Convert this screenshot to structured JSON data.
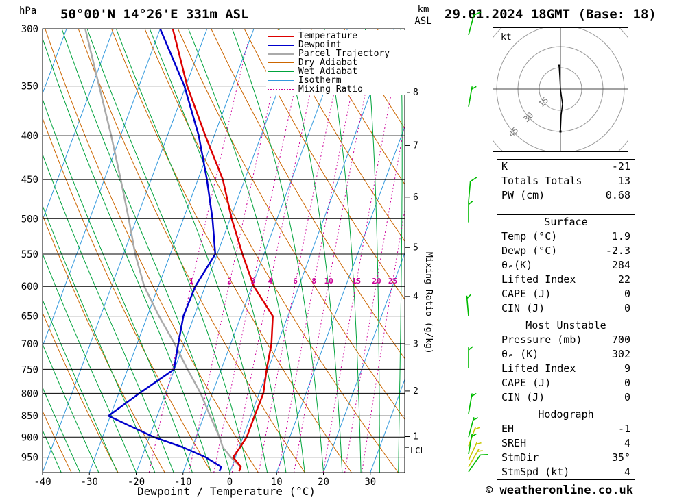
{
  "header": {
    "pressure_unit": "hPa",
    "station": "50°00'N 14°26'E 331m ASL",
    "altitude_unit": "km\nASL",
    "datetime": "29.01.2024 18GMT (Base: 18)"
  },
  "axes": {
    "pressure_ticks": [
      300,
      350,
      400,
      450,
      500,
      550,
      600,
      650,
      700,
      750,
      800,
      850,
      900,
      950
    ],
    "temp_ticks": [
      -40,
      -30,
      -20,
      -10,
      0,
      10,
      20,
      30
    ],
    "km_ticks": [
      1,
      2,
      3,
      4,
      5,
      6,
      7,
      8
    ],
    "xlabel": "Dewpoint / Temperature (°C)",
    "mixing_label": "Mixing Ratio (g/kg)",
    "lcl_label": "LCL"
  },
  "legend": [
    {
      "label": "Temperature",
      "color": "#dd0000",
      "width": 2.5,
      "dash": ""
    },
    {
      "label": "Dewpoint",
      "color": "#0000cc",
      "width": 2.5,
      "dash": ""
    },
    {
      "label": "Parcel Trajectory",
      "color": "#aaaaaa",
      "width": 2.5,
      "dash": ""
    },
    {
      "label": "Dry Adiabat",
      "color": "#cc6600",
      "width": 1,
      "dash": ""
    },
    {
      "label": "Wet Adiabat",
      "color": "#00a33c",
      "width": 1,
      "dash": ""
    },
    {
      "label": "Isotherm",
      "color": "#3399dd",
      "width": 1,
      "dash": ""
    },
    {
      "label": "Mixing Ratio",
      "color": "#cc0099",
      "width": 1,
      "dash": "2,3"
    }
  ],
  "chart_data": {
    "type": "skewt-sounding",
    "pressure_range_hPa": [
      300,
      990
    ],
    "temp_axis_range_C": [
      -40,
      40
    ],
    "pressure_hPa": [
      975,
      950,
      925,
      900,
      850,
      800,
      750,
      700,
      650,
      600,
      550,
      500,
      450,
      400,
      350,
      300
    ],
    "temperature_C": [
      1.9,
      -0.5,
      0.2,
      0.8,
      0.8,
      0.9,
      -0.3,
      -1.3,
      -3.2,
      -9.6,
      -14.6,
      -19.7,
      -24.7,
      -31.9,
      -39.7,
      -47.3
    ],
    "dewpoint_C": [
      -2.3,
      -6.4,
      -12.0,
      -19.0,
      -30.4,
      -25.6,
      -20.1,
      -21.2,
      -22.3,
      -22.1,
      -20.4,
      -23.8,
      -28.1,
      -33.3,
      -40.3,
      -50.0
    ],
    "parcel_C": [
      1.9,
      -1.0,
      -3.5,
      -5.0,
      -8.7,
      -12.5,
      -17.2,
      -22.0,
      -27.5,
      -33.0,
      -37.5,
      -41.7,
      -46.5,
      -52.0,
      -58.5,
      -66.0
    ],
    "mixing_ratio_lines_gkg": [
      1,
      2,
      3,
      4,
      6,
      8,
      10,
      15,
      20,
      25
    ],
    "lcl_pressure_hPa": 925
  },
  "wind_barbs": [
    {
      "p": 305,
      "color": "green",
      "spd": 10,
      "dir": 15
    },
    {
      "p": 370,
      "color": "green",
      "spd": 5,
      "dir": 10
    },
    {
      "p": 478,
      "color": "green",
      "spd": 10,
      "dir": 5
    },
    {
      "p": 505,
      "color": "green",
      "spd": 5,
      "dir": 0
    },
    {
      "p": 650,
      "color": "green",
      "spd": 5,
      "dir": -5
    },
    {
      "p": 747,
      "color": "green",
      "spd": 5,
      "dir": 0
    },
    {
      "p": 845,
      "color": "green",
      "spd": 5,
      "dir": 10
    },
    {
      "p": 900,
      "color": "green",
      "spd": 5,
      "dir": 15
    },
    {
      "p": 922,
      "color": "yellow",
      "spd": 5,
      "dir": 20
    },
    {
      "p": 942,
      "color": "green",
      "spd": 5,
      "dir": 10
    },
    {
      "p": 958,
      "color": "yellow",
      "spd": 5,
      "dir": 25
    },
    {
      "p": 975,
      "color": "yellow",
      "spd": 5,
      "dir": 30
    },
    {
      "p": 988,
      "color": "green",
      "spd": 10,
      "dir": 35
    }
  ],
  "hodograph": {
    "unit": "kt",
    "ring_labels": [
      15,
      30,
      45
    ],
    "ring_spacing_kt": 15,
    "trace": [
      [
        -2,
        -34
      ],
      [
        -1,
        -18
      ],
      [
        0,
        0
      ],
      [
        3,
        22
      ],
      [
        1,
        38
      ],
      [
        0,
        62
      ]
    ]
  },
  "panels": [
    {
      "name": "indices",
      "title": "",
      "rows": [
        [
          "K",
          "-21"
        ],
        [
          "Totals Totals",
          "13"
        ],
        [
          "PW (cm)",
          "0.68"
        ]
      ]
    },
    {
      "name": "surface",
      "title": "Surface",
      "rows": [
        [
          "Temp (°C)",
          "1.9"
        ],
        [
          "Dewp (°C)",
          "-2.3"
        ],
        [
          "θₑ(K)",
          "284"
        ],
        [
          "Lifted Index",
          "22"
        ],
        [
          "CAPE (J)",
          "0"
        ],
        [
          "CIN (J)",
          "0"
        ]
      ]
    },
    {
      "name": "most-unstable",
      "title": "Most Unstable",
      "rows": [
        [
          "Pressure (mb)",
          "700"
        ],
        [
          "θₑ (K)",
          "302"
        ],
        [
          "Lifted Index",
          "9"
        ],
        [
          "CAPE (J)",
          "0"
        ],
        [
          "CIN (J)",
          "0"
        ]
      ]
    },
    {
      "name": "hodograph",
      "title": "Hodograph",
      "rows": [
        [
          "EH",
          "-1"
        ],
        [
          "SREH",
          "4"
        ],
        [
          "StmDir",
          "35°"
        ],
        [
          "StmSpd (kt)",
          "4"
        ]
      ]
    }
  ],
  "footer": {
    "copyright": "© weatheronline.co.uk"
  },
  "colors": {
    "temperature": "#dd0000",
    "dewpoint": "#0000cc",
    "parcel": "#aaaaaa",
    "dry_adiabat": "#cc6600",
    "wet_adiabat": "#00a33c",
    "isotherm": "#3399dd",
    "mixing_ratio": "#cc0099",
    "barb_green": "#00bb00",
    "barb_yellow": "#c8c800",
    "grid": "#000000",
    "hodo_ring": "#999999"
  }
}
